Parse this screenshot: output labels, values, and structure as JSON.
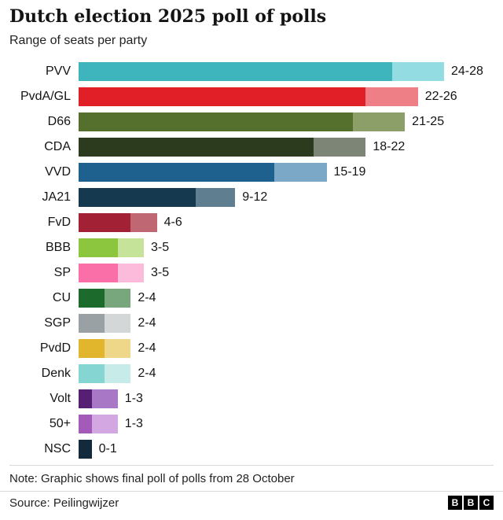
{
  "header": {
    "title": "Dutch election 2025 poll of polls",
    "subtitle": "Range of seats per party"
  },
  "chart_data": {
    "type": "bar",
    "orientation": "horizontal",
    "value_unit": "seats",
    "x_max": 28,
    "legend": "none",
    "grid": false,
    "series": [
      {
        "party": "PVV",
        "low": 24,
        "high": 28,
        "label": "24-28",
        "color_main": "#3eb5bd",
        "color_range": "#93dce1"
      },
      {
        "party": "PvdA/GL",
        "low": 22,
        "high": 26,
        "label": "22-26",
        "color_main": "#e11f26",
        "color_range": "#ee7f87"
      },
      {
        "party": "D66",
        "low": 21,
        "high": 25,
        "label": "21-25",
        "color_main": "#556f2d",
        "color_range": "#8c9f68"
      },
      {
        "party": "CDA",
        "low": 18,
        "high": 22,
        "label": "18-22",
        "color_main": "#2c3a1e",
        "color_range": "#7d8577"
      },
      {
        "party": "VVD",
        "low": 15,
        "high": 19,
        "label": "15-19",
        "color_main": "#1e618e",
        "color_range": "#7ba8c6"
      },
      {
        "party": "JA21",
        "low": 9,
        "high": 12,
        "label": "9-12",
        "color_main": "#15394e",
        "color_range": "#5f7f90"
      },
      {
        "party": "FvD",
        "low": 4,
        "high": 6,
        "label": "4-6",
        "color_main": "#a22134",
        "color_range": "#bf6873"
      },
      {
        "party": "BBB",
        "low": 3,
        "high": 5,
        "label": "3-5",
        "color_main": "#8cc63e",
        "color_range": "#c5e499"
      },
      {
        "party": "SP",
        "low": 3,
        "high": 5,
        "label": "3-5",
        "color_main": "#fa6fa8",
        "color_range": "#fcbbdb"
      },
      {
        "party": "CU",
        "low": 2,
        "high": 4,
        "label": "2-4",
        "color_main": "#1c6b2c",
        "color_range": "#78a77e"
      },
      {
        "party": "SGP",
        "low": 2,
        "high": 4,
        "label": "2-4",
        "color_main": "#9aa1a4",
        "color_range": "#d4d7d8"
      },
      {
        "party": "PvdD",
        "low": 2,
        "high": 4,
        "label": "2-4",
        "color_main": "#e1b62c",
        "color_range": "#efd789"
      },
      {
        "party": "Denk",
        "low": 2,
        "high": 4,
        "label": "2-4",
        "color_main": "#85d6d3",
        "color_range": "#c7ebe9"
      },
      {
        "party": "Volt",
        "low": 1,
        "high": 3,
        "label": "1-3",
        "color_main": "#561f73",
        "color_range": "#a877c5"
      },
      {
        "party": "50+",
        "low": 1,
        "high": 3,
        "label": "1-3",
        "color_main": "#a45ab8",
        "color_range": "#d3a8e2"
      },
      {
        "party": "NSC",
        "low": 0,
        "high": 1,
        "label": "0-1",
        "color_main": "#122a3c",
        "color_range": "#122a3c"
      }
    ],
    "note": "Note: Graphic shows final poll of polls from 28 October",
    "source": "Source: Peilingwijzer"
  },
  "footer": {
    "bbc_logo_letters": [
      "B",
      "B",
      "C"
    ]
  }
}
